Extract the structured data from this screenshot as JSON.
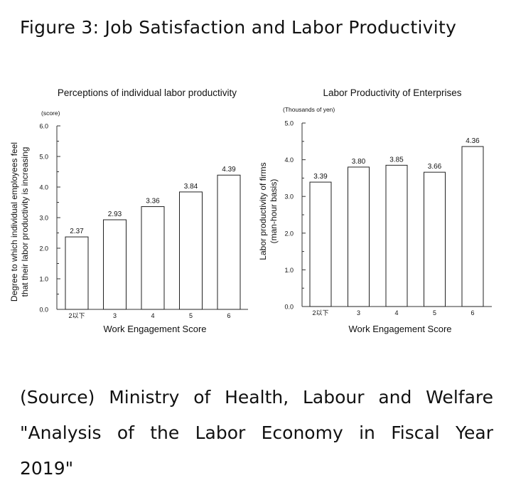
{
  "figure_title": "Figure 3: Job Satisfaction and Labor Productivity",
  "source": {
    "line1": "(Source) Ministry of Health, Labour and Welfare",
    "line2": "\"Analysis of the Labor Economy in Fiscal Year",
    "line3": "2019\""
  },
  "chart_data": [
    {
      "type": "bar",
      "title": "Perceptions of individual labor productivity",
      "unit": "(score)",
      "xlabel": "Work Engagement Score",
      "ylabel_line1": "Degree to which individual employees feel",
      "ylabel_line2": "that their labor productivity is increasing",
      "categories": [
        "2以下",
        "3",
        "4",
        "5",
        "6"
      ],
      "values": [
        2.37,
        2.93,
        3.36,
        3.84,
        4.39
      ],
      "value_labels": [
        "2.37",
        "2.93",
        "3.36",
        "3.84",
        "4.39"
      ],
      "ylim": [
        0,
        6
      ],
      "yticks": [
        "0.0",
        "1.0",
        "2.0",
        "3.0",
        "4.0",
        "5.0",
        "6.0"
      ]
    },
    {
      "type": "bar",
      "title": "Labor Productivity of Enterprises",
      "unit": "(Thousands of yen)",
      "xlabel": "Work Engagement Score",
      "ylabel_line1": "Labor productivity of firms",
      "ylabel_line2": "(man-hour basis)",
      "categories": [
        "2以下",
        "3",
        "4",
        "5",
        "6"
      ],
      "values": [
        3.39,
        3.8,
        3.85,
        3.66,
        4.36
      ],
      "value_labels": [
        "3.39",
        "3.80",
        "3.85",
        "3.66",
        "4.36"
      ],
      "ylim": [
        0,
        5
      ],
      "yticks": [
        "0.0",
        "1.0",
        "2.0",
        "3.0",
        "4.0",
        "5.0"
      ]
    }
  ]
}
